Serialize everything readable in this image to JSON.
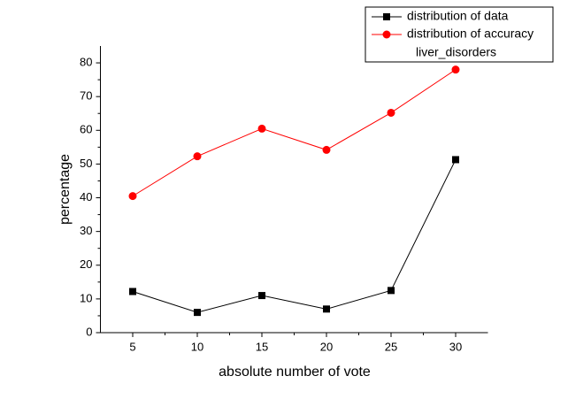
{
  "chart_data": {
    "type": "line",
    "x": [
      5,
      10,
      15,
      20,
      25,
      30
    ],
    "series": [
      {
        "name": "distribution of data",
        "color": "#000000",
        "marker": "square",
        "values": [
          12.2,
          6,
          11,
          7,
          12.5,
          51.3
        ]
      },
      {
        "name": "distribution of accuracy",
        "color": "#ff0000",
        "marker": "circle",
        "values": [
          40.5,
          52.3,
          60.5,
          54.2,
          65.2,
          78
        ]
      }
    ],
    "legend_note": "liver_disorders",
    "xlabel": "absolute number of vote",
    "ylabel": "percentage",
    "xlim": [
      2.5,
      32.5
    ],
    "xticks": [
      5,
      10,
      15,
      20,
      25,
      30
    ],
    "ylim": [
      0,
      85
    ],
    "yticks": [
      0,
      10,
      20,
      30,
      40,
      50,
      60,
      70,
      80
    ],
    "legend": "upper right"
  }
}
